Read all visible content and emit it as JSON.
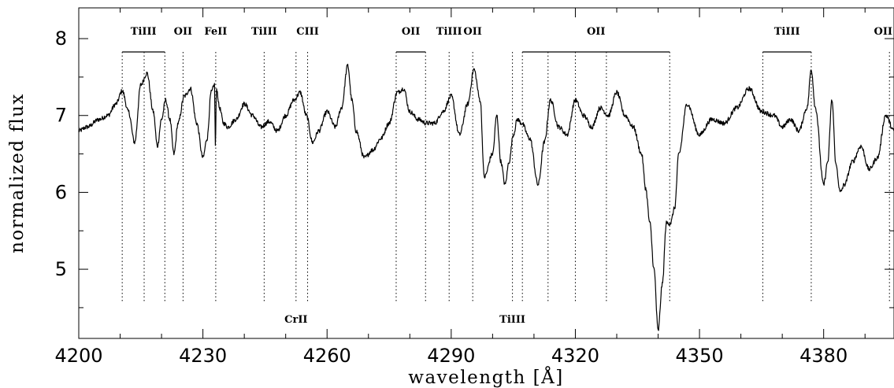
{
  "chart_data": {
    "type": "line",
    "title": "",
    "xlabel": "wavelength [Å]",
    "ylabel": "normalized flux",
    "xlim": [
      4200,
      4397
    ],
    "ylim": [
      4.1,
      8.4
    ],
    "x_ticks": [
      4200,
      4230,
      4260,
      4290,
      4320,
      4350,
      4380
    ],
    "y_ticks": [
      5,
      6,
      7,
      8
    ],
    "grid": false,
    "series": [
      {
        "x": [
          4200,
          4202,
          4205,
          4207,
          4209,
          4210.5,
          4212,
          4213.5,
          4215,
          4216.5,
          4218,
          4219,
          4220,
          4221,
          4222,
          4223,
          4224,
          4225.5,
          4227,
          4228.5,
          4230,
          4231,
          4232,
          4232.8,
          4233,
          4233.3,
          4234,
          4235,
          4236,
          4238,
          4240,
          4242,
          4244,
          4246,
          4248,
          4250,
          4252,
          4253.5,
          4255,
          4256.5,
          4258,
          4260,
          4262,
          4263.5,
          4265,
          4266,
          4267,
          4269,
          4271,
          4273,
          4275,
          4277,
          4278.5,
          4280,
          4282,
          4284,
          4286,
          4288,
          4290,
          4292,
          4294,
          4295.5,
          4297,
          4298,
          4300,
          4301,
          4302,
          4303,
          4304,
          4305,
          4306,
          4307,
          4309,
          4311,
          4312.5,
          4314,
          4316,
          4318,
          4320,
          4322,
          4324,
          4326,
          4328,
          4330,
          4332,
          4334,
          4336,
          4337,
          4338,
          4339,
          4340,
          4341,
          4342,
          4343,
          4344,
          4345,
          4347,
          4350,
          4353,
          4356,
          4359,
          4362,
          4365,
          4368,
          4370,
          4372,
          4374,
          4376,
          4377,
          4378,
          4380,
          4381,
          4382,
          4383,
          4384,
          4385,
          4387,
          4389,
          4391,
          4393,
          4395,
          4397
        ],
        "y": [
          6.8,
          6.85,
          6.95,
          7.0,
          7.15,
          7.32,
          7.05,
          6.65,
          7.4,
          7.55,
          7.05,
          6.6,
          6.95,
          7.2,
          6.95,
          6.5,
          6.9,
          7.25,
          7.35,
          6.9,
          6.45,
          6.7,
          7.3,
          7.4,
          6.6,
          7.35,
          7.1,
          6.9,
          6.85,
          6.95,
          7.15,
          7.0,
          6.85,
          6.92,
          6.8,
          7.0,
          7.2,
          7.3,
          7.0,
          6.65,
          6.8,
          7.05,
          6.85,
          7.1,
          7.65,
          7.2,
          6.8,
          6.45,
          6.55,
          6.7,
          6.9,
          7.3,
          7.35,
          7.05,
          6.95,
          6.9,
          6.9,
          7.05,
          7.25,
          6.75,
          7.15,
          7.6,
          7.2,
          6.2,
          6.5,
          7.0,
          6.4,
          6.1,
          6.4,
          6.75,
          6.95,
          6.9,
          6.7,
          6.1,
          6.65,
          7.2,
          6.85,
          6.75,
          7.2,
          7.0,
          6.85,
          7.1,
          7.0,
          7.3,
          7.0,
          6.85,
          6.5,
          6.05,
          5.6,
          5.0,
          4.2,
          4.8,
          5.6,
          5.6,
          5.8,
          6.5,
          7.15,
          6.75,
          6.95,
          6.9,
          7.1,
          7.35,
          7.05,
          7.0,
          6.85,
          6.95,
          6.8,
          7.1,
          7.6,
          7.1,
          6.1,
          6.4,
          7.2,
          6.35,
          6.0,
          6.1,
          6.4,
          6.6,
          6.3,
          6.45,
          7.0,
          6.8
        ]
      }
    ],
    "line_ids": [
      {
        "label": "TiIII",
        "position": "top",
        "wavelengths": [
          4210.5,
          4215.8,
          4220.8
        ]
      },
      {
        "label": "OII",
        "position": "top",
        "wavelengths": [
          4225.2
        ]
      },
      {
        "label": "FeII",
        "position": "top",
        "wavelengths": [
          4233.1
        ]
      },
      {
        "label": "TiIII",
        "position": "top",
        "wavelengths": [
          4244.8
        ]
      },
      {
        "label": "CIII",
        "position": "top",
        "wavelengths": [
          4255.3
        ]
      },
      {
        "label": "CrII",
        "position": "bottom",
        "wavelengths": [
          4252.5
        ]
      },
      {
        "label": "OII",
        "position": "top",
        "wavelengths": [
          4276.7,
          4283.8
        ]
      },
      {
        "label": "TiIII",
        "position": "top",
        "wavelengths": [
          4289.5
        ]
      },
      {
        "label": "OII",
        "position": "top",
        "wavelengths": [
          4295.2
        ]
      },
      {
        "label": "TiIII",
        "position": "bottom",
        "wavelengths": [
          4304.8
        ]
      },
      {
        "label": "OII",
        "position": "top",
        "wavelengths": [
          4307.2,
          4313.4,
          4320.0,
          4327.5,
          4342.8
        ]
      },
      {
        "label": "TiIII",
        "position": "top",
        "wavelengths": [
          4365.3,
          4377.0
        ]
      },
      {
        "label": "OII",
        "position": "top",
        "wavelengths": [
          4395.9
        ]
      }
    ]
  }
}
